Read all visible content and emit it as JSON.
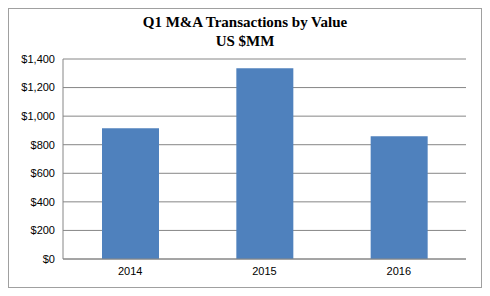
{
  "chart_data": {
    "type": "bar",
    "title": "Q1 M&A Transactions by Value",
    "subtitle": "US $MM",
    "categories": [
      "2014",
      "2015",
      "2016"
    ],
    "values": [
      915,
      1335,
      860
    ],
    "color": "#4f81bd",
    "ylim": [
      0,
      1400
    ],
    "yticks": [
      {
        "value": 0,
        "label": "$0"
      },
      {
        "value": 200,
        "label": "$200"
      },
      {
        "value": 400,
        "label": "$400"
      },
      {
        "value": 600,
        "label": "$600"
      },
      {
        "value": 800,
        "label": "$800"
      },
      {
        "value": 1000,
        "label": "$1,000"
      },
      {
        "value": 1200,
        "label": "$1,200"
      },
      {
        "value": 1400,
        "label": "$1,400"
      }
    ],
    "grid": true
  }
}
